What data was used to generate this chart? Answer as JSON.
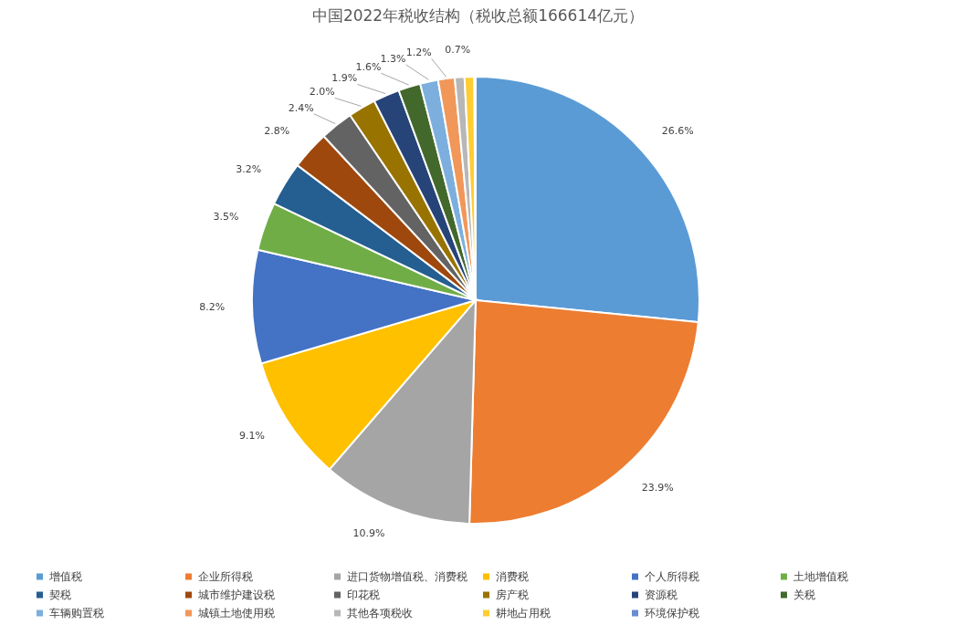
{
  "chart_data": {
    "type": "pie",
    "title": "中国2022年税收结构（税收总额166614亿元）",
    "categories": [
      "增值税",
      "企业所得税",
      "进口货物增值税、消费税",
      "消费税",
      "个人所得税",
      "土地增值税",
      "契税",
      "城市维护建设税",
      "印花税",
      "房产税",
      "资源税",
      "关税",
      "车辆购置税",
      "城镇土地使用税",
      "其他各项税收",
      "耕地占用税",
      "环境保护税"
    ],
    "values": [
      26.6,
      23.9,
      10.9,
      9.1,
      8.2,
      3.5,
      3.2,
      2.8,
      2.4,
      2.0,
      1.9,
      1.6,
      1.3,
      1.2,
      0.7,
      0.7,
      0.1
    ],
    "value_labels": [
      "26.6%",
      "23.9%",
      "10.9%",
      "9.1%",
      "8.2%",
      "3.5%",
      "3.2%",
      "2.8%",
      "2.4%",
      "2.0%",
      "1.9%",
      "1.6%",
      "1.3%",
      "1.2%",
      "0.7%",
      null,
      null
    ],
    "colors": [
      "#5b9bd5",
      "#ed7d31",
      "#a5a5a5",
      "#ffc000",
      "#4472c4",
      "#70ad47",
      "#255e91",
      "#9e480e",
      "#636363",
      "#997300",
      "#264478",
      "#43682b",
      "#7cafdd",
      "#f1975a",
      "#b7b7b7",
      "#ffcd33",
      "#698ed0"
    ],
    "legend": "bottom"
  }
}
